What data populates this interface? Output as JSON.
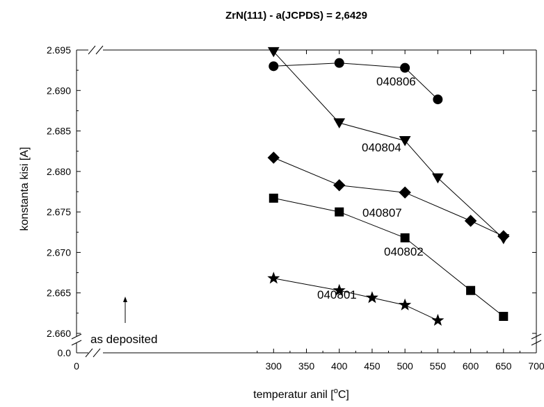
{
  "chart_data": {
    "type": "line",
    "title": "ZrN(111) - a(JCPDS) = 2,6429",
    "xlabel": "temperatur anil [°C]",
    "xlabel_parts": [
      "temperatur anil [",
      "o",
      "C]"
    ],
    "ylabel": "konstanta kisi [A]",
    "xlim": [
      0,
      700
    ],
    "ylim_main": [
      2.66,
      2.695
    ],
    "ylim_lower_label": "0.0",
    "axis_break": {
      "x": true,
      "y": true
    },
    "x_ticks": [
      "0",
      "300",
      "350",
      "400",
      "450",
      "500",
      "550",
      "600",
      "650",
      "700"
    ],
    "y_ticks": [
      "2.660",
      "2.665",
      "2.670",
      "2.675",
      "2.680",
      "2.685",
      "2.690",
      "2.695"
    ],
    "grid": false,
    "legend": "none",
    "annotation_arrow": {
      "text": "as deposited",
      "x": 300
    },
    "series": [
      {
        "name": "040806",
        "marker": "circle",
        "x": [
          300,
          400,
          500,
          550
        ],
        "y": [
          2.693,
          2.6934,
          2.6928,
          2.6889
        ]
      },
      {
        "name": "040804",
        "marker": "triangle-down",
        "x": [
          300,
          400,
          500,
          550,
          650
        ],
        "y": [
          2.6948,
          2.686,
          2.6838,
          2.6792,
          2.6717
        ]
      },
      {
        "name": "040807",
        "marker": "diamond",
        "x": [
          300,
          400,
          500,
          600,
          650
        ],
        "y": [
          2.6817,
          2.6783,
          2.6774,
          2.6739,
          2.672
        ]
      },
      {
        "name": "040802",
        "marker": "square",
        "x": [
          300,
          400,
          500,
          600,
          650
        ],
        "y": [
          2.6767,
          2.675,
          2.6718,
          2.6653,
          2.6621
        ]
      },
      {
        "name": "040801",
        "marker": "star",
        "x": [
          300,
          400,
          450,
          500,
          550
        ],
        "y": [
          2.6668,
          2.6653,
          2.6644,
          2.6635,
          2.6616
        ]
      }
    ]
  }
}
